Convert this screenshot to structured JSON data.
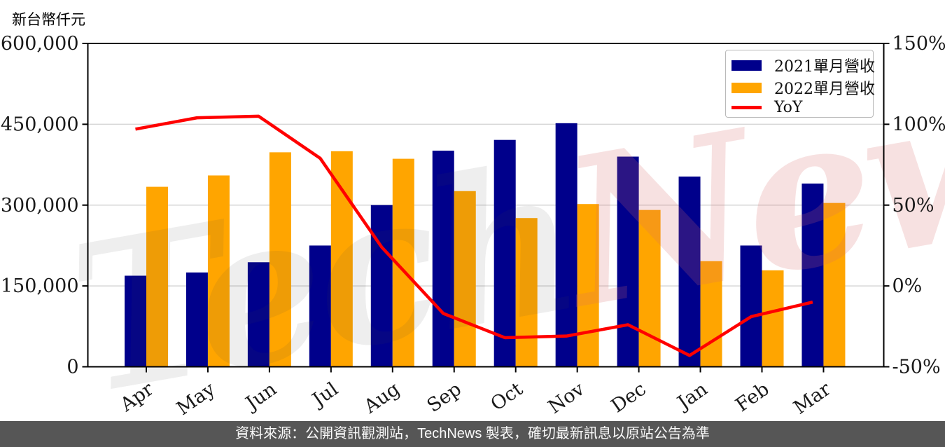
{
  "title": "新台幣仟元",
  "watermark": {
    "part1": "Tech",
    "part2": "News"
  },
  "legend": {
    "items": [
      {
        "label": "2021單月營收",
        "color": "#00008B",
        "type": "bar"
      },
      {
        "label": "2022單月營收",
        "color": "#FFA500",
        "type": "bar"
      },
      {
        "label": "YoY",
        "color": "#FF0000",
        "type": "line"
      }
    ]
  },
  "footer": {
    "text": "資料來源：公開資訊觀測站，TechNews 製表，確切最新訊息以原站公告為準"
  },
  "chart_data": {
    "type": "bar",
    "title": "新台幣仟元",
    "categories": [
      "Apr",
      "May",
      "Jun",
      "Jul",
      "Aug",
      "Sep",
      "Oct",
      "Nov",
      "Dec",
      "Jan",
      "Feb",
      "Mar"
    ],
    "series": [
      {
        "name": "2021單月營收",
        "type": "bar",
        "color": "#00008B",
        "values": [
          169000,
          175000,
          194000,
          225000,
          300000,
          401000,
          421000,
          452000,
          390000,
          353000,
          225000,
          340000
        ]
      },
      {
        "name": "2022單月營收",
        "type": "bar",
        "color": "#FFA500",
        "values": [
          334000,
          355000,
          398000,
          400000,
          386000,
          326000,
          276000,
          302000,
          291000,
          196000,
          179000,
          304000
        ]
      },
      {
        "name": "YoY",
        "type": "line",
        "color": "#FF0000",
        "unit": "%",
        "values": [
          97,
          104,
          105,
          79,
          24,
          -17,
          -32,
          -31,
          -24,
          -43,
          -19,
          -10
        ]
      }
    ],
    "left_axis": {
      "label": "新台幣仟元",
      "ticks": [
        "0",
        "150,000",
        "300,000",
        "450,000",
        "600,000"
      ],
      "tick_values": [
        0,
        150000,
        300000,
        450000,
        600000
      ],
      "min": 0,
      "max": 600000
    },
    "right_axis": {
      "ticks": [
        "-50%",
        "0%",
        "50%",
        "100%",
        "150%"
      ],
      "tick_values": [
        -50,
        0,
        50,
        100,
        150
      ],
      "min": -50,
      "max": 150
    },
    "grid": true,
    "legend_position": "top-right"
  }
}
